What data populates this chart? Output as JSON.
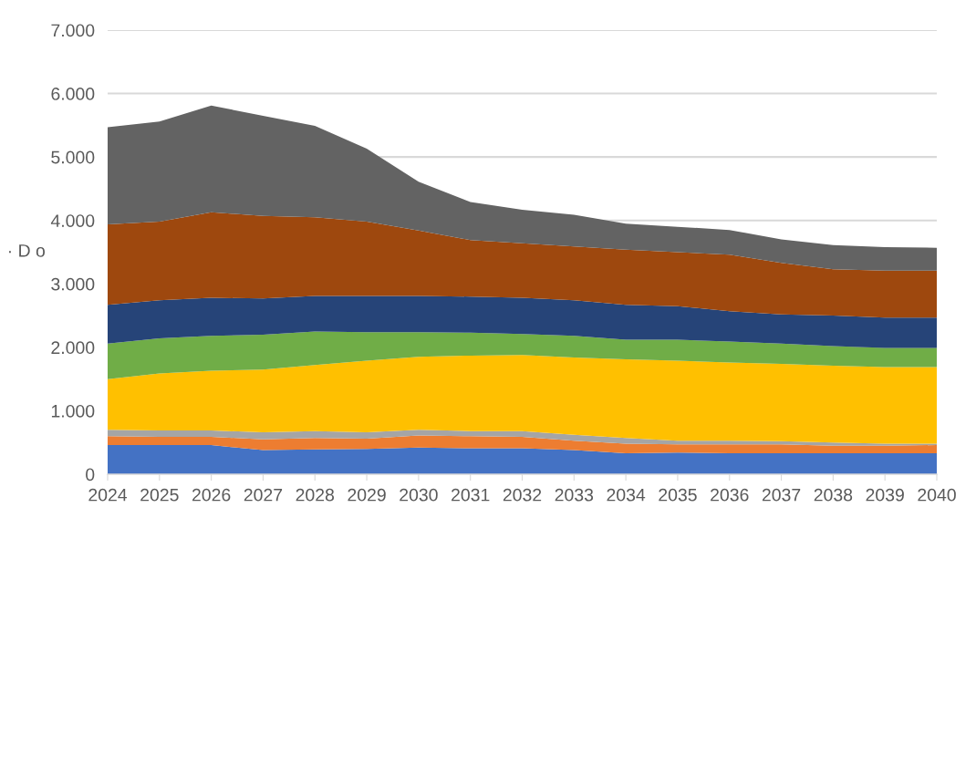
{
  "chart_data": {
    "type": "area",
    "stacked": true,
    "ylabel": "· D o",
    "categories": [
      "2024",
      "2025",
      "2026",
      "2027",
      "2028",
      "2029",
      "2030",
      "2031",
      "2032",
      "2033",
      "2034",
      "2035",
      "2036",
      "2037",
      "2038",
      "2039",
      "2040"
    ],
    "ylim": [
      0,
      7000
    ],
    "yticks": [
      0,
      {
        "value": 1000,
        "label": "1.000"
      },
      {
        "value": 2000,
        "label": "2.000"
      },
      {
        "value": 3000,
        "label": "3.000"
      },
      {
        "value": 4000,
        "label": "4.000"
      },
      {
        "value": 5000,
        "label": "5.000"
      },
      {
        "value": 6000,
        "label": "6.000"
      },
      {
        "value": 7000,
        "label": "7.000"
      }
    ],
    "grid": "y",
    "series": [
      {
        "color": "#4472c4",
        "values": [
          460,
          460,
          460,
          380,
          390,
          400,
          420,
          410,
          410,
          380,
          330,
          340,
          330,
          330,
          330,
          330,
          330
        ]
      },
      {
        "color": "#ed7d31",
        "values": [
          140,
          130,
          130,
          170,
          180,
          160,
          190,
          190,
          180,
          150,
          150,
          130,
          140,
          140,
          120,
          120,
          130
        ]
      },
      {
        "color": "#a5a5a5",
        "values": [
          100,
          100,
          100,
          110,
          110,
          100,
          90,
          80,
          90,
          90,
          90,
          60,
          60,
          50,
          50,
          30,
          20
        ]
      },
      {
        "color": "#ffc000",
        "values": [
          800,
          900,
          940,
          990,
          1040,
          1130,
          1150,
          1190,
          1200,
          1220,
          1240,
          1260,
          1230,
          1220,
          1210,
          1210,
          1210
        ]
      },
      {
        "color": "#70ad47",
        "values": [
          560,
          550,
          550,
          550,
          530,
          450,
          390,
          360,
          330,
          340,
          310,
          330,
          330,
          320,
          310,
          300,
          300
        ]
      },
      {
        "color": "#264478",
        "values": [
          610,
          600,
          600,
          570,
          560,
          570,
          570,
          570,
          570,
          560,
          550,
          530,
          480,
          460,
          480,
          480,
          480
        ]
      },
      {
        "color": "#9e480e",
        "values": [
          1270,
          1240,
          1350,
          1300,
          1240,
          1170,
          1030,
          890,
          860,
          850,
          870,
          850,
          890,
          810,
          730,
          740,
          740
        ]
      },
      {
        "color": "#636363",
        "values": [
          1530,
          1580,
          1680,
          1580,
          1440,
          1150,
          770,
          600,
          530,
          500,
          410,
          400,
          390,
          370,
          380,
          370,
          360
        ]
      }
    ]
  }
}
